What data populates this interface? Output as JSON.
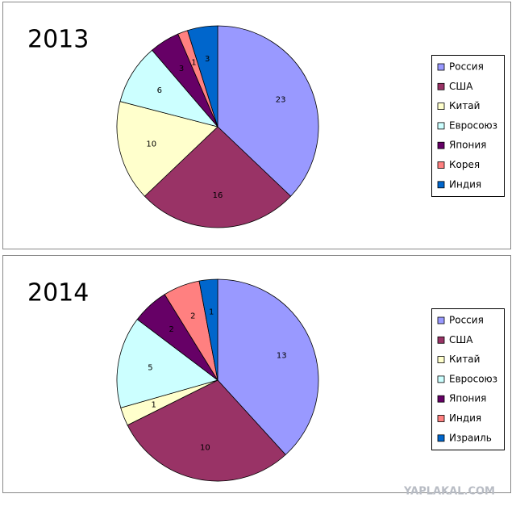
{
  "chart_data": [
    {
      "type": "pie",
      "title": "2013",
      "categories": [
        "Россия",
        "США",
        "Китай",
        "Евросоюз",
        "Япония",
        "Корея",
        "Индия"
      ],
      "values": [
        23,
        16,
        10,
        6,
        3,
        1,
        3
      ],
      "colors": [
        "#9999ff",
        "#993366",
        "#ffffcc",
        "#ccffff",
        "#660066",
        "#ff8080",
        "#0066cc"
      ]
    },
    {
      "type": "pie",
      "title": "2014",
      "categories": [
        "Россия",
        "США",
        "Китай",
        "Евросоюз",
        "Япония",
        "Индия",
        "Израиль"
      ],
      "values": [
        13,
        10,
        1,
        5,
        2,
        2,
        1
      ],
      "colors": [
        "#9999ff",
        "#993366",
        "#ffffcc",
        "#ccffff",
        "#660066",
        "#ff8080",
        "#0066cc"
      ]
    }
  ],
  "watermark": "YAPLAKAL.COM"
}
